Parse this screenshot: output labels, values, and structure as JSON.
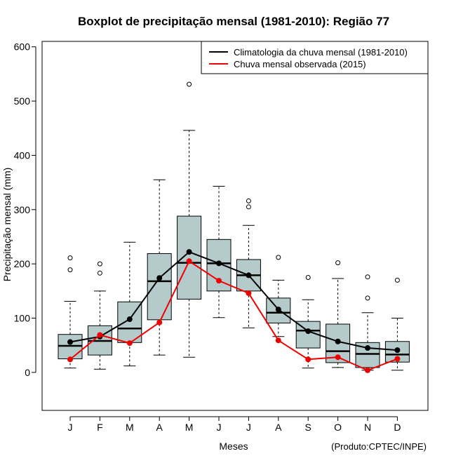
{
  "chart_data": {
    "type": "boxplot",
    "title": "Boxplot de precipitação mensal (1981-2010): Região 77",
    "xlabel": "Meses",
    "ylabel": "Precipitação mensal (mm)",
    "ylim": [
      -70,
      610
    ],
    "yticks": [
      0,
      100,
      200,
      300,
      400,
      500,
      600
    ],
    "categories": [
      "J",
      "F",
      "M",
      "A",
      "M",
      "J",
      "J",
      "A",
      "S",
      "O",
      "N",
      "D"
    ],
    "boxes": [
      {
        "whisker_low": 8,
        "q1": 25,
        "median": 49,
        "q3": 70,
        "whisker_high": 131,
        "outliers": [
          189,
          211
        ]
      },
      {
        "whisker_low": 6,
        "q1": 32,
        "median": 58,
        "q3": 86,
        "whisker_high": 150,
        "outliers": [
          183,
          200
        ]
      },
      {
        "whisker_low": 12,
        "q1": 55,
        "median": 81,
        "q3": 130,
        "whisker_high": 240,
        "outliers": []
      },
      {
        "whisker_low": 32,
        "q1": 97,
        "median": 168,
        "q3": 219,
        "whisker_high": 355,
        "outliers": []
      },
      {
        "whisker_low": 28,
        "q1": 135,
        "median": 202,
        "q3": 288,
        "whisker_high": 446,
        "outliers": [
          531
        ]
      },
      {
        "whisker_low": 101,
        "q1": 150,
        "median": 201,
        "q3": 245,
        "whisker_high": 343,
        "outliers": []
      },
      {
        "whisker_low": 82,
        "q1": 150,
        "median": 179,
        "q3": 208,
        "whisker_high": 271,
        "outliers": [
          305,
          316
        ]
      },
      {
        "whisker_low": 66,
        "q1": 91,
        "median": 110,
        "q3": 137,
        "whisker_high": 170,
        "outliers": [
          212
        ]
      },
      {
        "whisker_low": 8,
        "q1": 45,
        "median": 77,
        "q3": 94,
        "whisker_high": 134,
        "outliers": [
          175
        ]
      },
      {
        "whisker_low": 9,
        "q1": 18,
        "median": 39,
        "q3": 89,
        "whisker_high": 173,
        "outliers": [
          202
        ]
      },
      {
        "whisker_low": 4,
        "q1": 9,
        "median": 34,
        "q3": 55,
        "whisker_high": 110,
        "outliers": [
          137,
          176
        ]
      },
      {
        "whisker_low": 4,
        "q1": 19,
        "median": 33,
        "q3": 57,
        "whisker_high": 100,
        "outliers": [
          170
        ]
      }
    ],
    "series": [
      {
        "name": "Climatologia da chuva mensal (1981-2010)",
        "color": "#000000",
        "values": [
          56,
          66,
          98,
          174,
          222,
          201,
          179,
          116,
          76,
          57,
          45,
          41
        ]
      },
      {
        "name": "Chuva mensal observada (2015)",
        "color": "#ee0000",
        "values": [
          24,
          69,
          54,
          92,
          205,
          169,
          146,
          59,
          24,
          28,
          4,
          25
        ]
      }
    ],
    "box_fill": "#b5cbcb",
    "legend_position": "top-right",
    "credit": "(Produto:CPTEC/INPE)"
  }
}
